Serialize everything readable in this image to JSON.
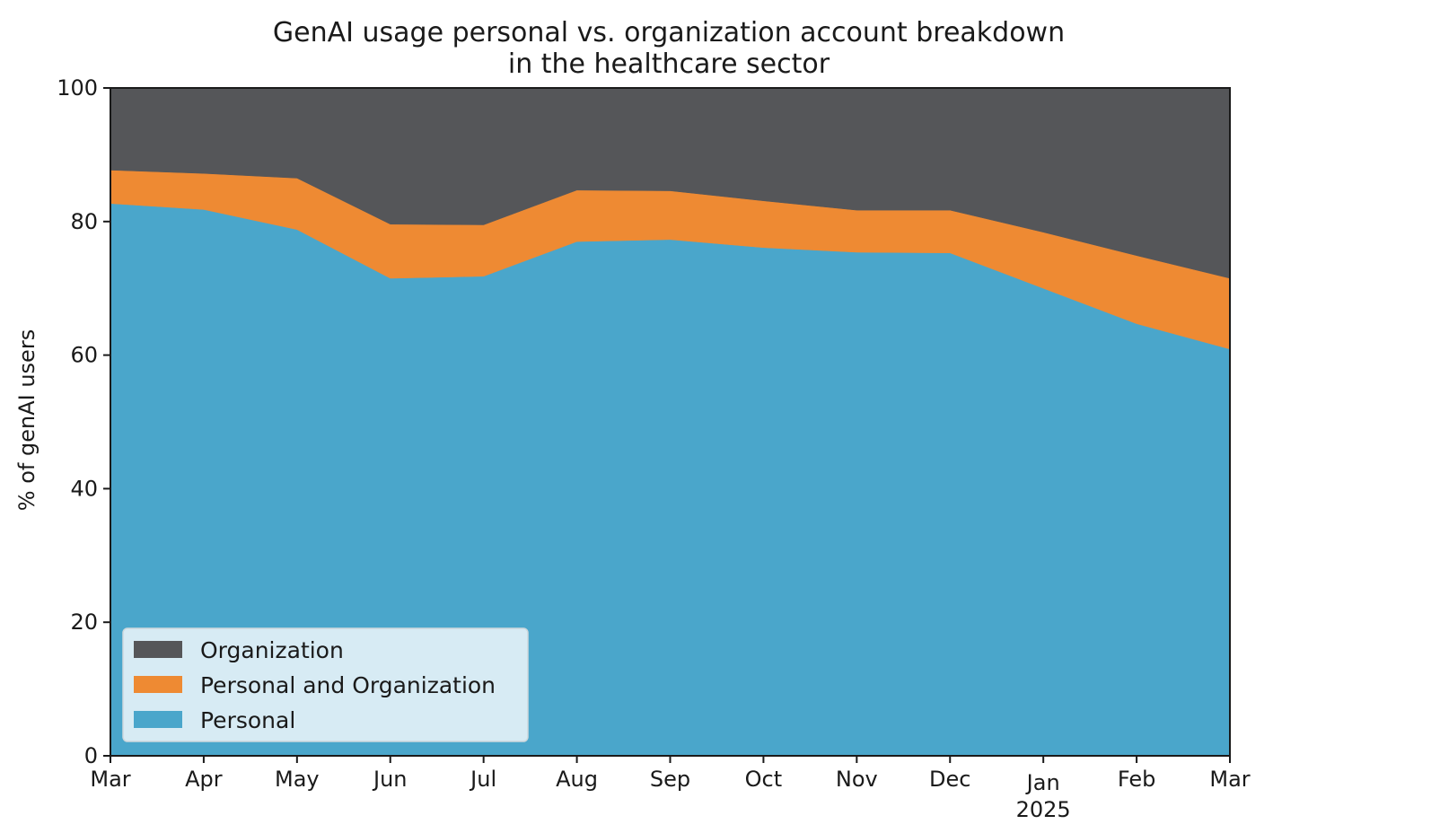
{
  "chart_data": {
    "type": "area",
    "stacked": true,
    "title": [
      "GenAI usage personal vs. organization account breakdown",
      "in the healthcare sector"
    ],
    "xlabel": "",
    "ylabel": "% of genAI users",
    "ylim": [
      0,
      100
    ],
    "yticks": [
      "0",
      "20",
      "40",
      "60",
      "80",
      "100"
    ],
    "categories": [
      "Mar",
      "Apr",
      "May",
      "Jun",
      "Jul",
      "Aug",
      "Sep",
      "Oct",
      "Nov",
      "Dec",
      "Jan",
      "Feb",
      "Mar"
    ],
    "tick_sublabels": [
      "",
      "",
      "",
      "",
      "",
      "",
      "",
      "",
      "",
      "",
      "2025",
      "",
      ""
    ],
    "grid": false,
    "legend_placement": "bottom-left",
    "series": [
      {
        "name": "Personal",
        "color": "#4aa6cb",
        "values": [
          82.7,
          81.8,
          78.8,
          71.5,
          71.8,
          77.0,
          77.3,
          76.1,
          75.4,
          75.3,
          70.0,
          64.7,
          60.9
        ]
      },
      {
        "name": "Personal and Organization",
        "color": "#ee8a33",
        "values": [
          5.0,
          5.4,
          7.7,
          8.1,
          7.7,
          7.7,
          7.3,
          7.0,
          6.3,
          6.4,
          8.4,
          10.2,
          10.6
        ]
      },
      {
        "name": "Organization",
        "color": "#555659",
        "values": [
          12.3,
          12.8,
          13.5,
          20.4,
          20.5,
          15.3,
          15.4,
          16.9,
          18.3,
          18.3,
          21.6,
          25.1,
          28.5
        ]
      }
    ],
    "legend_order": [
      "Organization",
      "Personal and Organization",
      "Personal"
    ]
  }
}
